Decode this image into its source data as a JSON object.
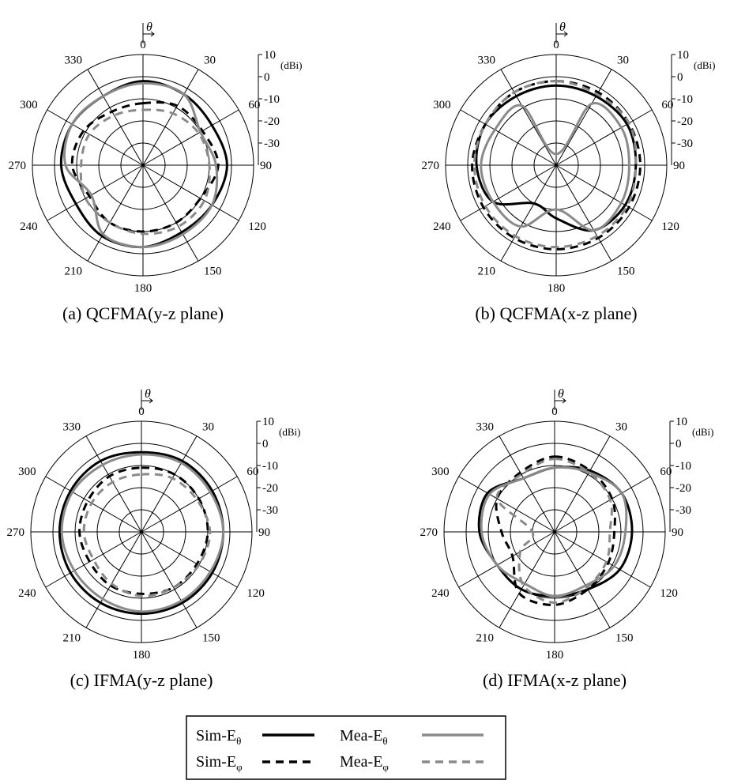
{
  "theta_symbol": "θ",
  "unit": "(dBi)",
  "legend": [
    {
      "key": "sim_theta",
      "prefix": "Sim-E",
      "sub": "θ",
      "color": "#000000",
      "dash": "solid"
    },
    {
      "key": "sim_phi",
      "prefix": "Sim-E",
      "sub": "φ",
      "color": "#000000",
      "dash": "dashed"
    },
    {
      "key": "mea_theta",
      "prefix": "Mea-E",
      "sub": "θ",
      "color": "#8a8a8a",
      "dash": "solid"
    },
    {
      "key": "mea_phi",
      "prefix": "Mea-E",
      "sub": "φ",
      "color": "#8a8a8a",
      "dash": "dashed"
    }
  ],
  "chart_data": [
    {
      "type": "polar-line",
      "caption": "(a) QCFMA(y-z plane)",
      "angle_ticks": [
        "0",
        "30",
        "60",
        "90",
        "120",
        "150",
        "180",
        "210",
        "240",
        "270",
        "300",
        "330"
      ],
      "radial_ticks": [
        "10",
        "0",
        "-10",
        "-20",
        "-30"
      ],
      "r_range_dbi": [
        -40,
        10
      ],
      "angles_deg": [
        0,
        30,
        60,
        90,
        120,
        150,
        180,
        210,
        240,
        270,
        300,
        330
      ],
      "series": [
        {
          "key": "sim_theta",
          "values": [
            -2,
            -3,
            -4,
            -2,
            -4,
            -5,
            -3,
            -3,
            -5,
            -3,
            -3,
            -4
          ]
        },
        {
          "key": "sim_phi",
          "values": [
            -12,
            -9,
            -9,
            -6,
            -10,
            -10,
            -10,
            -10,
            -12,
            -8,
            -9,
            -12
          ]
        },
        {
          "key": "mea_theta",
          "values": [
            -3,
            -3,
            -10,
            -7,
            -4,
            -4,
            -3,
            -4,
            -13,
            -5,
            -3,
            -4
          ]
        },
        {
          "key": "mea_phi",
          "values": [
            -15,
            -13,
            -11,
            -10,
            -8,
            -8,
            -9,
            -10,
            -10,
            -12,
            -12,
            -14
          ]
        }
      ]
    },
    {
      "type": "polar-line",
      "caption": "(b) QCFMA(x-z plane)",
      "angle_ticks": [
        "0",
        "30",
        "60",
        "90",
        "120",
        "150",
        "180",
        "210",
        "240",
        "270",
        "300",
        "330"
      ],
      "radial_ticks": [
        "10",
        "0",
        "-10",
        "-20",
        "-30"
      ],
      "r_range_dbi": [
        -40,
        10
      ],
      "angles_deg": [
        0,
        30,
        60,
        90,
        120,
        150,
        180,
        210,
        240,
        270,
        300,
        330
      ],
      "series": [
        {
          "key": "sim_theta",
          "values": [
            -4,
            -4,
            -3,
            -4,
            -4,
            -6,
            -16,
            -20,
            -7,
            -4,
            -3,
            -4
          ]
        },
        {
          "key": "sim_phi",
          "values": [
            -2,
            -2,
            -2,
            -2,
            -2,
            -2,
            -2,
            -2,
            -2,
            -2,
            -3,
            -2
          ]
        },
        {
          "key": "mea_theta",
          "values": [
            -35,
            -8,
            -6,
            -7,
            -6,
            -6,
            -20,
            -8,
            -7,
            -6,
            -8,
            -9
          ]
        },
        {
          "key": "mea_phi",
          "values": [
            -2,
            -3,
            -2,
            -4,
            -3,
            -3,
            -3,
            -3,
            -3,
            -3,
            -3,
            -2
          ]
        }
      ]
    },
    {
      "type": "polar-line",
      "caption": "(c) IFMA(y-z plane)",
      "angle_ticks": [
        "0",
        "30",
        "60",
        "90",
        "120",
        "150",
        "180",
        "210",
        "240",
        "270",
        "300",
        "330"
      ],
      "radial_ticks": [
        "10",
        "0",
        "-10",
        "-20",
        "-30"
      ],
      "r_range_dbi": [
        -40,
        10
      ],
      "angles_deg": [
        0,
        30,
        60,
        90,
        120,
        150,
        180,
        210,
        240,
        270,
        300,
        330
      ],
      "series": [
        {
          "key": "sim_theta",
          "values": [
            -4,
            -3,
            -3,
            -3,
            -3,
            -3,
            -3,
            -3,
            -3,
            -3,
            -3,
            -3
          ]
        },
        {
          "key": "sim_phi",
          "values": [
            -11,
            -10,
            -10,
            -10,
            -11,
            -11,
            -12,
            -12,
            -13,
            -12,
            -12,
            -11
          ]
        },
        {
          "key": "mea_theta",
          "values": [
            -5,
            -4,
            -4,
            -3,
            -4,
            -4,
            -4,
            -5,
            -5,
            -4,
            -4,
            -5
          ]
        },
        {
          "key": "mea_phi",
          "values": [
            -14,
            -12,
            -11,
            -9,
            -10,
            -11,
            -11,
            -13,
            -15,
            -14,
            -14,
            -14
          ]
        }
      ]
    },
    {
      "type": "polar-line",
      "caption": "(d) IFMA(x-z plane)",
      "angle_ticks": [
        "0",
        "30",
        "60",
        "90",
        "120",
        "150",
        "180",
        "210",
        "240",
        "270",
        "300",
        "330"
      ],
      "radial_ticks": [
        "10",
        "0",
        "-10",
        "-20",
        "-30"
      ],
      "r_range_dbi": [
        -40,
        10
      ],
      "angles_deg": [
        0,
        30,
        60,
        90,
        120,
        150,
        180,
        210,
        240,
        270,
        300,
        330
      ],
      "series": [
        {
          "key": "sim_theta",
          "values": [
            -11,
            -8,
            -5,
            -5,
            -6,
            -10,
            -11,
            -10,
            -10,
            -6,
            -5,
            -12
          ]
        },
        {
          "key": "sim_phi",
          "values": [
            -6,
            -8,
            -10,
            -13,
            -12,
            -10,
            -7,
            -8,
            -18,
            -16,
            -10,
            -9
          ]
        },
        {
          "key": "mea_theta",
          "values": [
            -11,
            -9,
            -5,
            -8,
            -9,
            -12,
            -11,
            -13,
            -10,
            -7,
            -6,
            -12
          ]
        },
        {
          "key": "mea_phi",
          "values": [
            -7,
            -9,
            -11,
            -15,
            -13,
            -11,
            -8,
            -12,
            -22,
            -30,
            -10,
            -10
          ]
        }
      ]
    }
  ]
}
